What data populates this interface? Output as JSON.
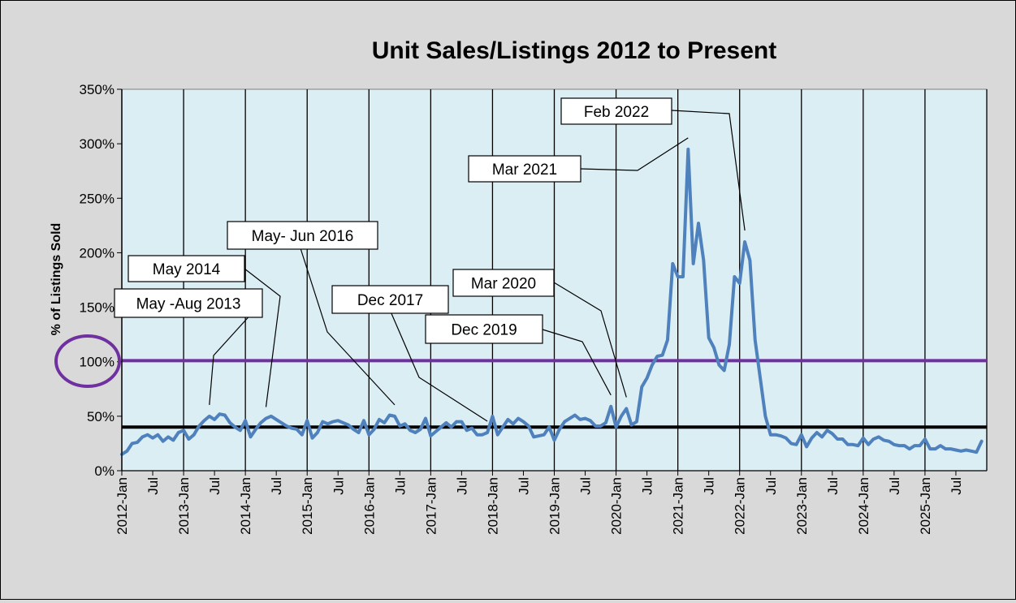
{
  "chart_data": {
    "type": "line",
    "title": "Unit Sales/Listings 2012 to Present",
    "ylabel": "% of Listings Sold",
    "xlabel": "",
    "ylim": [
      0,
      350
    ],
    "y_ticks": [
      "0%",
      "50%",
      "100%",
      "150%",
      "200%",
      "250%",
      "300%",
      "350%"
    ],
    "x_ticks": [
      "2012-Jan",
      "Jul",
      "2013-Jan",
      "Jul",
      "2014-Jan",
      "Jul",
      "2015-Jan",
      "Jul",
      "2016-Jan",
      "Jul",
      "2017-Jan",
      "Jul",
      "2018-Jan",
      "Jul",
      "2019-Jan",
      "Jul",
      "2020-Jan",
      "Jul",
      "2021-Jan",
      "Jul",
      "2022-Jan",
      "Jul",
      "2023-Jan",
      "Jul",
      "2024-Jan",
      "Jul",
      "2025-Jan",
      "Jul"
    ],
    "grid": "vertical lines at each January",
    "legend": "none",
    "colors": {
      "series": "#4f81bd",
      "plot_bg": "#dbeef4",
      "chart_bg": "#d9d9d9",
      "ref_100": "#7030a0",
      "ref_40": "#000000",
      "circle": "#7030a0"
    },
    "reference_lines": [
      {
        "value": 101,
        "color": "#7030a0"
      },
      {
        "value": 40,
        "color": "#000000"
      }
    ],
    "series": [
      {
        "values": [
          15,
          18,
          25,
          26,
          31,
          33,
          30,
          33,
          27,
          31,
          28,
          35,
          37,
          29,
          33,
          41,
          46,
          50,
          47,
          52,
          51,
          44,
          40,
          37,
          46,
          31,
          38,
          44,
          48,
          50,
          47,
          44,
          41,
          39,
          38,
          33,
          46,
          30,
          35,
          45,
          43,
          45,
          46,
          44,
          42,
          38,
          35,
          46,
          33,
          38,
          47,
          44,
          51,
          50,
          41,
          43,
          37,
          35,
          38,
          48,
          32,
          36,
          40,
          44,
          40,
          45,
          45,
          37,
          39,
          33,
          33,
          35,
          50,
          33,
          40,
          47,
          43,
          48,
          45,
          41,
          31,
          32,
          33,
          40,
          28,
          38,
          45,
          48,
          51,
          47,
          48,
          46,
          41,
          41,
          44,
          59,
          40,
          50,
          57,
          42,
          45,
          77,
          85,
          97,
          105,
          106,
          120,
          190,
          178,
          178,
          295,
          190,
          227,
          193,
          122,
          113,
          97,
          92,
          116,
          178,
          172,
          210,
          193,
          120,
          85,
          50,
          33,
          33,
          32,
          30,
          25,
          24,
          33,
          22,
          30,
          35,
          31,
          37,
          34,
          29,
          29,
          24,
          24,
          23,
          30,
          24,
          29,
          31,
          28,
          27,
          24,
          23,
          23,
          20,
          23,
          23,
          29,
          20,
          20,
          23,
          20,
          20,
          19,
          18,
          19,
          18,
          17,
          27
        ]
      }
    ],
    "annotations": [
      {
        "text": "May -Aug 2013",
        "index": 17
      },
      {
        "text": "May 2014",
        "index": 28
      },
      {
        "text": "May- Jun 2016",
        "index": 53
      },
      {
        "text": "Dec 2017",
        "index": 71
      },
      {
        "text": "Dec 2019",
        "index": 95
      },
      {
        "text": "Mar 2020",
        "index": 98
      },
      {
        "text": "Mar 2021",
        "index": 110
      },
      {
        "text": "Feb 2022",
        "index": 121
      }
    ]
  }
}
